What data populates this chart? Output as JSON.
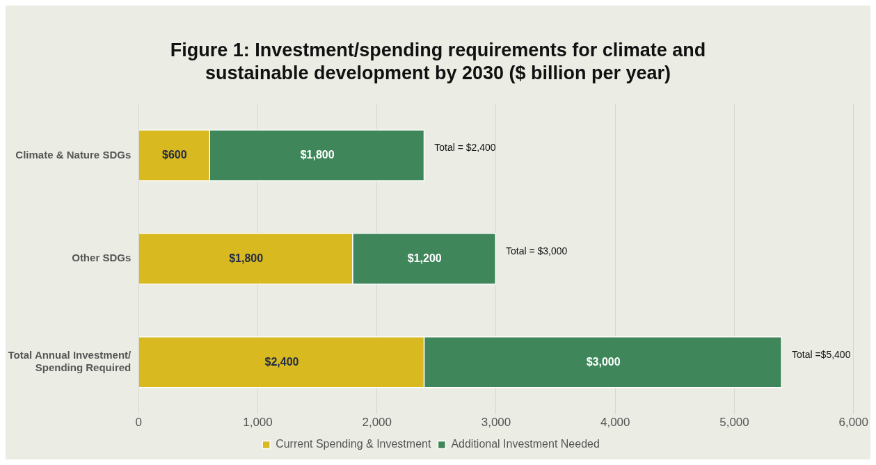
{
  "chart_data": {
    "type": "bar",
    "orientation": "horizontal",
    "stacked": true,
    "title": "Figure 1: Investment/spending requirements for climate and sustainable development by 2030 ($ billion per year)",
    "categories": [
      "Climate & Nature SDGs",
      "Other SDGs",
      "Total Annual Investment/ Spending Required"
    ],
    "series": [
      {
        "name": "Current Spending & Investment",
        "color": "#d8b920",
        "values": [
          600,
          1800,
          2400
        ],
        "value_labels": [
          "$600",
          "$1,800",
          "$2,400"
        ]
      },
      {
        "name": "Additional Investment Needed",
        "color": "#3f865a",
        "values": [
          1800,
          1200,
          3000
        ],
        "value_labels": [
          "$1,800",
          "$1,200",
          "$3,000"
        ]
      }
    ],
    "totals": [
      "Total = $2,400",
      "Total = $3,000",
      "Total =$5,400"
    ],
    "xlim": [
      0,
      6000
    ],
    "xticks": [
      0,
      {
        "value": 1000,
        "label": "1,000"
      },
      {
        "value": 2000,
        "label": "2,000"
      },
      {
        "value": 3000,
        "label": "3,000"
      },
      {
        "value": 4000,
        "label": "4,000"
      },
      {
        "value": 5000,
        "label": "5,000"
      },
      {
        "value": 6000,
        "label": "6,000"
      }
    ],
    "grid": "x",
    "legend": "bottom"
  }
}
